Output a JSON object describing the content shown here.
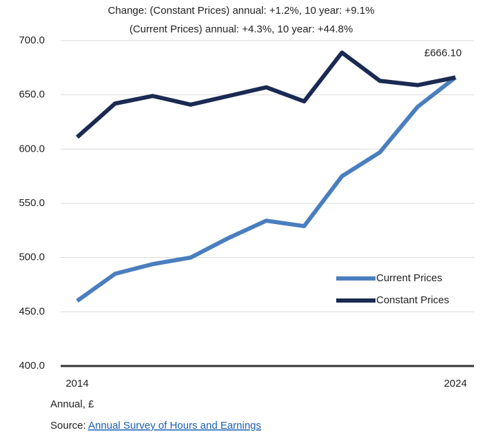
{
  "chart_data": {
    "type": "line",
    "title": [
      "Change: (Constant Prices) annual: +1.2%, 10 year: +9.1%",
      "(Current Prices) annual: +4.3%, 10 year: +44.8%"
    ],
    "x": [
      2014,
      2015,
      2016,
      2017,
      2018,
      2019,
      2020,
      2021,
      2022,
      2023,
      2024
    ],
    "xlim": [
      2014,
      2024
    ],
    "xticks": [
      2014,
      2024
    ],
    "series": [
      {
        "name": "Current Prices",
        "color": "#4a7ebf",
        "values": [
          460,
          485,
          494,
          500,
          518,
          534,
          529,
          575,
          597,
          639,
          666.1
        ]
      },
      {
        "name": "Constant Prices",
        "color": "#1b2a52",
        "values": [
          611,
          642,
          649,
          641,
          649,
          657,
          644,
          689,
          663,
          659,
          666.1
        ]
      }
    ],
    "ylim": [
      400,
      700
    ],
    "yticks": [
      {
        "value": 400,
        "label": "400.0"
      },
      {
        "value": 450,
        "label": "450.0"
      },
      {
        "value": 500,
        "label": "500.0"
      },
      {
        "value": 550,
        "label": "550.0"
      },
      {
        "value": 600,
        "label": "600.0"
      },
      {
        "value": 650,
        "label": "650.0"
      },
      {
        "value": 700,
        "label": "700.0"
      }
    ],
    "grid": true,
    "legend": "lower right",
    "annotations": [
      {
        "text": "£666.10",
        "x": 2024,
        "y": 666.1
      }
    ],
    "notes": {
      "unit": "Annual, £",
      "source_prefix": "Source: ",
      "source_link": "Annual Survey of Hours and Earnings"
    }
  }
}
